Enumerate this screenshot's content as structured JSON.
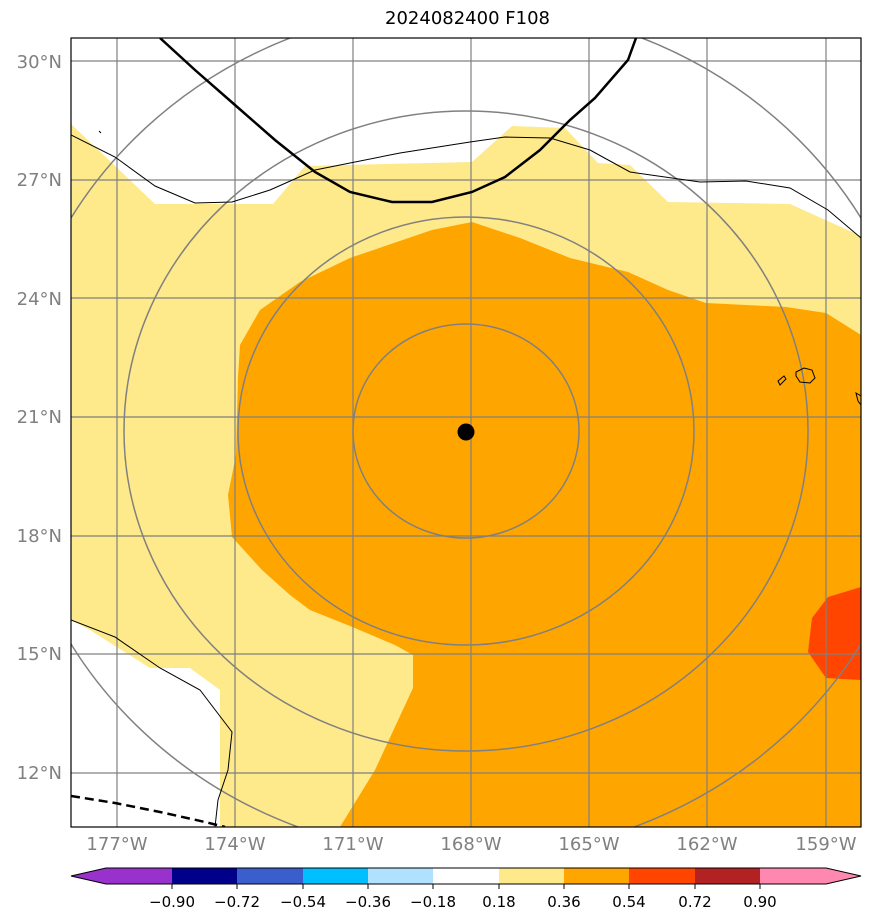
{
  "title": "2024082400 F108",
  "map": {
    "lon_range": [
      -178.2,
      -158.4
    ],
    "lat_range": [
      10.6,
      30.6
    ],
    "lat_ticks": [
      {
        "value": 30,
        "label": "30°N"
      },
      {
        "value": 27,
        "label": "27°N"
      },
      {
        "value": 24,
        "label": "24°N"
      },
      {
        "value": 21,
        "label": "21°N"
      },
      {
        "value": 18,
        "label": "18°N"
      },
      {
        "value": 15,
        "label": "15°N"
      },
      {
        "value": 12,
        "label": "12°N"
      }
    ],
    "lon_ticks": [
      {
        "value": -177,
        "label": "177°W"
      },
      {
        "value": -174,
        "label": "174°W"
      },
      {
        "value": -171,
        "label": "171°W"
      },
      {
        "value": -168,
        "label": "168°W"
      },
      {
        "value": -165,
        "label": "165°W"
      },
      {
        "value": -162,
        "label": "162°W"
      },
      {
        "value": -159,
        "label": "159°W"
      }
    ],
    "center": {
      "lon": -168.1,
      "lat": 20.6
    },
    "colors": {
      "level_018_036": "#fee98b",
      "level_036_054": "#ffa500",
      "level_054_072": "#ff4500",
      "grid": "#808080",
      "range_rings": "#808080",
      "track": "#000000"
    }
  },
  "colorbar": {
    "ticks": [
      "−0.90",
      "−0.72",
      "−0.54",
      "−0.36",
      "−0.18",
      "0.18",
      "0.36",
      "0.54",
      "0.72",
      "0.90"
    ],
    "colors": [
      "#9932cc",
      "#00008b",
      "#3a5fcd",
      "#00bfff",
      "#b0e2ff",
      "#ffffff",
      "#fee98b",
      "#ffa500",
      "#ff4500",
      "#b22222",
      "#ff88b0"
    ]
  }
}
